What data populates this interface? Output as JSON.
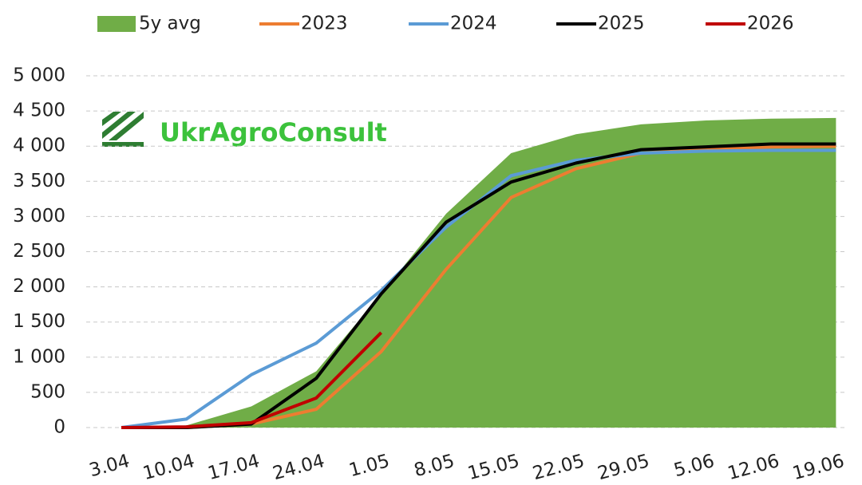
{
  "chart_data": {
    "type": "line",
    "watermark": "UkrAgroConsult",
    "categories": [
      "3.04",
      "10.04",
      "17.04",
      "24.04",
      "1.05",
      "8.05",
      "15.05",
      "22.05",
      "29.05",
      "5.06",
      "12.06",
      "19.06"
    ],
    "series": [
      {
        "name": "5y avg",
        "kind": "area",
        "color": "#70ad47",
        "values": [
          0,
          30,
          300,
          800,
          1900,
          3040,
          3900,
          4170,
          4310,
          4365,
          4390,
          4400
        ]
      },
      {
        "name": "2023",
        "color": "#ed7d31",
        "values": [
          0,
          0,
          50,
          260,
          1080,
          2250,
          3270,
          3680,
          3900,
          3950,
          3990,
          4000
        ]
      },
      {
        "name": "2024",
        "color": "#5b9bd5",
        "values": [
          0,
          120,
          750,
          1200,
          1950,
          2850,
          3580,
          3800,
          3900,
          3930,
          3940,
          3940
        ]
      },
      {
        "name": "2025",
        "color": "#000000",
        "values": [
          0,
          0,
          50,
          700,
          1900,
          2920,
          3490,
          3760,
          3950,
          3990,
          4030,
          4030
        ]
      },
      {
        "name": "2026",
        "color": "#c00000",
        "values": [
          0,
          10,
          70,
          420,
          1350,
          null,
          null,
          null,
          null,
          null,
          null,
          null
        ]
      }
    ],
    "ylim": [
      0,
      5000
    ],
    "yticks": [
      0,
      500,
      {
        "value": 1000,
        "label": "1 000"
      },
      {
        "value": 1500,
        "label": "1 500"
      },
      {
        "value": 2000,
        "label": "2 000"
      },
      {
        "value": 2500,
        "label": "2 500"
      },
      {
        "value": 3000,
        "label": "3 000"
      },
      {
        "value": 3500,
        "label": "3 500"
      },
      {
        "value": 4000,
        "label": "4 000"
      },
      {
        "value": 4500,
        "label": "4 500"
      },
      {
        "value": 5000,
        "label": "5 000"
      }
    ],
    "grid": true,
    "legend": "top"
  }
}
